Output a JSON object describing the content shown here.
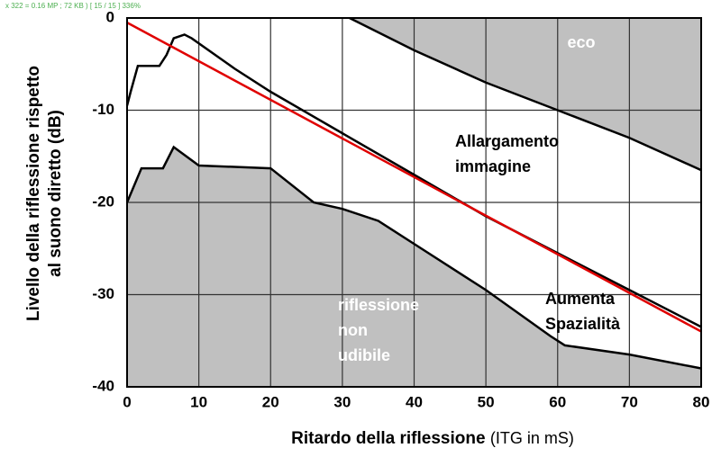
{
  "header_text": "x 322 = 0.16 MP ; 72 KB ) [ 15 / 15 ] 336%",
  "chart_data": {
    "type": "line",
    "xlabel": "Ritardo della riflessione",
    "xlabel_note": "(ITG in mS)",
    "ylabel": [
      "Livello della riflessione rispetto",
      "al suono diretto (dB)"
    ],
    "xlim": [
      0,
      80
    ],
    "ylim": [
      -40,
      0
    ],
    "xticks": [
      0,
      10,
      20,
      30,
      40,
      50,
      60,
      70,
      80
    ],
    "yticks": [
      -40,
      -30,
      -20,
      -10,
      0
    ],
    "grid": true,
    "grid_color": "#333333",
    "shade_color": "#c0c0c0",
    "series": [
      {
        "color": "#000000",
        "fill": "above",
        "x": [
          31,
          40,
          50,
          60,
          70,
          80
        ],
        "values": [
          0,
          -3.5,
          -7,
          -10,
          -13,
          -16.5
        ]
      },
      {
        "color": "#000000",
        "fill": "below",
        "x": [
          0,
          2,
          5,
          6.5,
          10,
          20,
          26,
          30,
          35,
          40,
          50,
          59,
          61,
          70,
          80
        ],
        "values": [
          -20,
          -16.3,
          -16.3,
          -14,
          -16,
          -16.3,
          -20,
          -20.7,
          -22,
          -24.5,
          -29.5,
          -34.5,
          -35.5,
          -36.5,
          -38
        ]
      },
      {
        "color": "#000000",
        "fill": "none",
        "x": [
          0,
          0.5,
          1.5,
          4.5,
          5.5,
          6.5,
          8,
          9,
          15,
          20,
          30,
          40,
          50,
          60,
          70,
          80
        ],
        "values": [
          -9.5,
          -8,
          -5.2,
          -5.2,
          -4,
          -2.2,
          -1.8,
          -2.2,
          -5.5,
          -8,
          -12.5,
          -17,
          -21.5,
          -25.5,
          -29.5,
          -33.5
        ]
      },
      {
        "color": "#e00000",
        "fill": "none",
        "x": [
          0,
          80
        ],
        "values": [
          -0.5,
          -34
        ]
      }
    ],
    "annotations": [
      {
        "text": [
          "eco"
        ],
        "color": "#ffffff"
      },
      {
        "text": [
          "Allargamento",
          "immagine"
        ],
        "color": "#000000"
      },
      {
        "text": [
          "Aumenta",
          "Spazialità"
        ],
        "color": "#000000"
      },
      {
        "text": [
          "riflessione",
          "non",
          "udibile"
        ],
        "color": "#ffffff"
      }
    ]
  }
}
